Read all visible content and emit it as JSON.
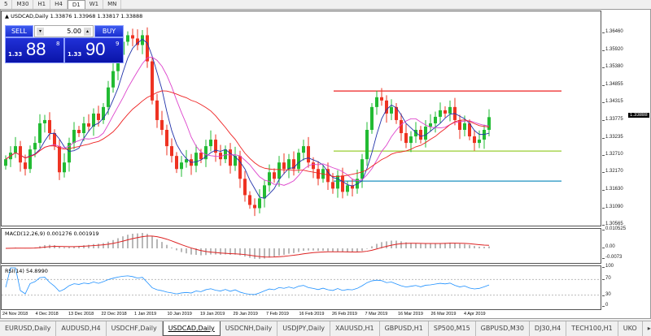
{
  "timeframes": [
    "5",
    "M30",
    "H1",
    "H4",
    "D1",
    "W1",
    "MN"
  ],
  "active_timeframe": "D1",
  "chart": {
    "title": "USDCAD,Daily",
    "ohlc": "1.33876 1.33968 1.33817 1.33888",
    "current_price": "1.33888"
  },
  "trade_panel": {
    "sell_label": "SELL",
    "buy_label": "BUY",
    "lot": "5.00",
    "sell_small": "1.33",
    "sell_big": "88",
    "sell_pip": "8",
    "buy_small": "1.33",
    "buy_big": "90",
    "buy_pip": "9"
  },
  "price_axis": [
    "1.36460",
    "1.35920",
    "1.35380",
    "1.34855",
    "1.34315",
    "1.33775",
    "1.33235",
    "1.32710",
    "1.32170",
    "1.31630",
    "1.31090",
    "1.30565"
  ],
  "macd": {
    "label": "MACD(12,26,9) 0.001276 0.001919",
    "axis": [
      "0.010525",
      "0.00",
      "-0.0073"
    ]
  },
  "rsi": {
    "label": "RSI(14) 54.8990",
    "axis": [
      "100",
      "70",
      "30",
      "0"
    ]
  },
  "dates": [
    "24 Nov 2018",
    "4 Dec 2018",
    "13 Dec 2018",
    "22 Dec 2018",
    "1 Jan 2019",
    "10 Jan 2019",
    "19 Jan 2019",
    "29 Jan 2019",
    "7 Feb 2019",
    "16 Feb 2019",
    "26 Feb 2019",
    "7 Mar 2019",
    "16 Mar 2019",
    "26 Mar 2019",
    "4 Apr 2019"
  ],
  "closes": [
    1.326,
    1.328,
    1.33,
    1.325,
    1.323,
    1.329,
    1.331,
    1.337,
    1.338,
    1.334,
    1.33,
    1.322,
    1.325,
    1.331,
    1.335,
    1.334,
    1.337,
    1.336,
    1.34,
    1.338,
    1.342,
    1.348,
    1.353,
    1.358,
    1.362,
    1.364,
    1.363,
    1.361,
    1.364,
    1.356,
    1.344,
    1.338,
    1.335,
    1.33,
    1.327,
    1.323,
    1.325,
    1.326,
    1.324,
    1.328,
    1.326,
    1.33,
    1.332,
    1.328,
    1.326,
    1.329,
    1.324,
    1.327,
    1.32,
    1.315,
    1.312,
    1.311,
    1.314,
    1.318,
    1.322,
    1.32,
    1.325,
    1.323,
    1.326,
    1.323,
    1.328,
    1.33,
    1.325,
    1.323,
    1.32,
    1.323,
    1.319,
    1.317,
    1.321,
    1.316,
    1.318,
    1.317,
    1.32,
    1.326,
    1.335,
    1.342,
    1.345,
    1.344,
    1.34,
    1.342,
    1.338,
    1.334,
    1.331,
    1.333,
    1.335,
    1.332,
    1.336,
    1.337,
    1.339,
    1.341,
    1.34,
    1.342,
    1.338,
    1.335,
    1.337,
    1.333,
    1.331,
    1.332,
    1.335,
    1.3389
  ],
  "levels": [
    {
      "price": 1.3469,
      "color": "#ee2020"
    },
    {
      "price": 1.3285,
      "color": "#9acd32"
    },
    {
      "price": 1.3193,
      "color": "#1e90c0"
    }
  ],
  "colors": {
    "bull": "#22bb33",
    "bear": "#ee3322",
    "ma_fast": "#2233aa",
    "ma_mid": "#ee2222",
    "ma_slow": "#dd44cc",
    "macd_hist": "#b8b8b8",
    "macd_signal": "#dd2222",
    "rsi": "#1e90ff"
  },
  "tabs": [
    "EURUSD,Daily",
    "AUDUSD,H4",
    "USDCHF,Daily",
    "USDCAD,Daily",
    "USDCNH,Daily",
    "USDJPY,Daily",
    "XAUUSD,H1",
    "GBPUSD,H1",
    "SP500,M15",
    "GBPUSD,M30",
    "DJ30,H4",
    "TECH100,H1",
    "UKO"
  ],
  "active_tab": "USDCAD,Daily"
}
